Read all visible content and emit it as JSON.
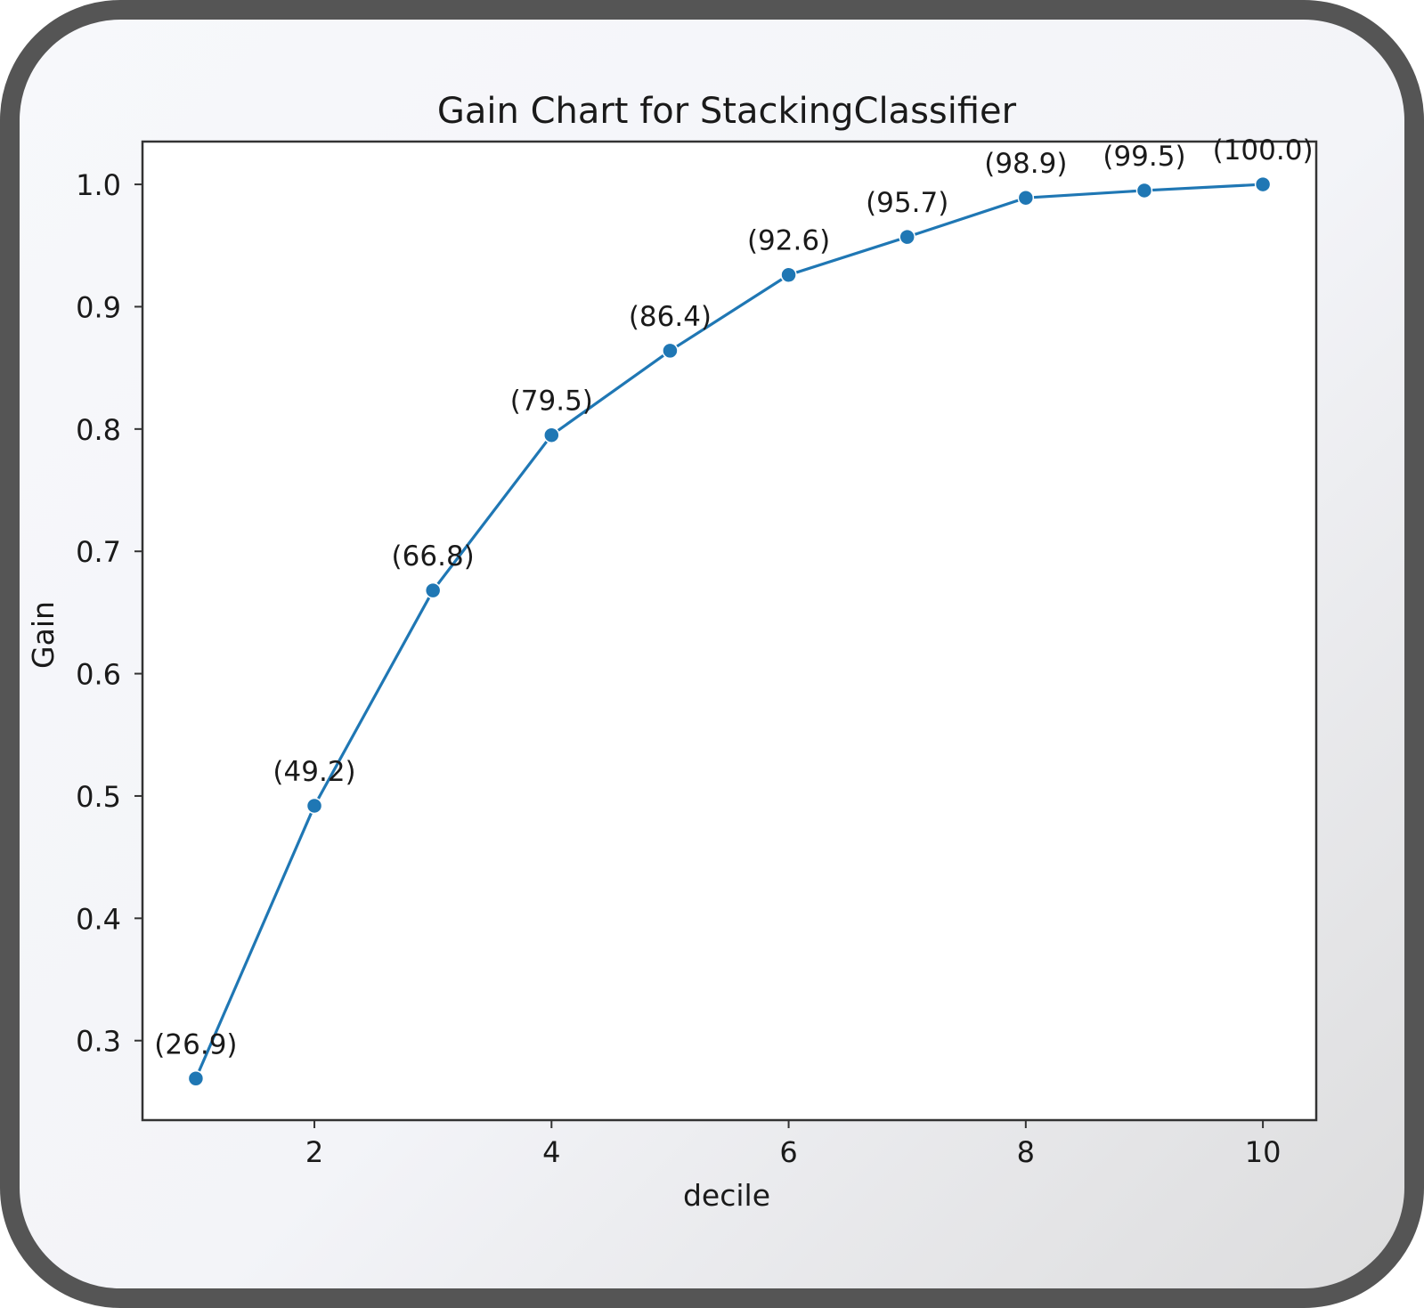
{
  "chart_data": {
    "type": "line",
    "title": "Gain Chart for StackingClassifier",
    "xlabel": "decile",
    "ylabel": "Gain",
    "x": [
      1,
      2,
      3,
      4,
      5,
      6,
      7,
      8,
      9,
      10
    ],
    "series": [
      {
        "values": [
          0.269,
          0.492,
          0.668,
          0.795,
          0.864,
          0.926,
          0.957,
          0.989,
          0.995,
          1.0
        ],
        "labels": [
          "(26.9)",
          "(49.2)",
          "(66.8)",
          "(79.5)",
          "(86.4)",
          "(92.6)",
          "(95.7)",
          "(98.9)",
          "(99.5)",
          "(100.0)"
        ],
        "color": "#1f77b4",
        "marker": "circle"
      }
    ],
    "xlim": [
      0.55,
      10.45
    ],
    "ylim": [
      0.235,
      1.035
    ],
    "xticks": [
      2,
      4,
      6,
      8,
      10
    ],
    "xtick_labels": [
      "2",
      "4",
      "6",
      "8",
      "10"
    ],
    "yticks": [
      0.3,
      0.4,
      0.5,
      0.6,
      0.7,
      0.8,
      0.9,
      1.0
    ],
    "ytick_labels": [
      "0.3",
      "0.4",
      "0.5",
      "0.6",
      "0.7",
      "0.8",
      "0.9",
      "1.0"
    ],
    "grid": false,
    "legend": "none"
  }
}
